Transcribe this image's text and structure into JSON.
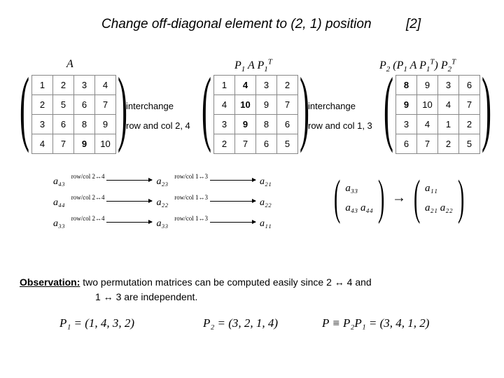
{
  "title": "Change off-diagonal element to (2, 1) position",
  "title_ref": "[2]",
  "labels": {
    "lambda": "A",
    "p1ap1": "P₁ A P₁ᵀ",
    "p2": "P₂ ( P₁ A P₁ᵀ ) P₂ᵀ"
  },
  "matrices": {
    "A": {
      "rows": [
        [
          "1",
          "2",
          "3",
          "4"
        ],
        [
          "2",
          "5",
          "6",
          "7"
        ],
        [
          "3",
          "6",
          "8",
          "9"
        ],
        [
          "4",
          "7",
          "9",
          "10"
        ]
      ],
      "bold_cells": [
        [
          3,
          2
        ]
      ]
    },
    "B": {
      "rows": [
        [
          "1",
          "4",
          "3",
          "2"
        ],
        [
          "4",
          "10",
          "9",
          "7"
        ],
        [
          "3",
          "9",
          "8",
          "6"
        ],
        [
          "2",
          "7",
          "6",
          "5"
        ]
      ],
      "bold_cells": [
        [
          0,
          1
        ],
        [
          1,
          1
        ],
        [
          2,
          1
        ]
      ]
    },
    "C": {
      "rows": [
        [
          "8",
          "9",
          "3",
          "6"
        ],
        [
          "9",
          "10",
          "4",
          "7"
        ],
        [
          "3",
          "4",
          "1",
          "2"
        ],
        [
          "6",
          "7",
          "2",
          "5"
        ]
      ],
      "bold_cells": [
        [
          0,
          0
        ],
        [
          1,
          0
        ]
      ]
    }
  },
  "annotations": {
    "int1_a": "interchange",
    "int1_b": "row and col 2, 4",
    "int2_a": "interchange",
    "int2_b": "row and col 1, 3"
  },
  "mapping": {
    "rows": [
      {
        "from": "a₄₃",
        "lbl1": "row/col 2↔4",
        "mid": "a₂₃",
        "lbl2": "row/col 1↔3",
        "to": "a₂₁"
      },
      {
        "from": "a₄₄",
        "lbl1": "row/col 2↔4",
        "mid": "a₂₂",
        "lbl2": "row/col 1↔3",
        "to": "a₂₂"
      },
      {
        "from": "a₃₃",
        "lbl1": "row/col 2↔4",
        "mid": "a₃₃",
        "lbl2": "row/col 1↔3",
        "to": "a₁₁"
      }
    ]
  },
  "map_right": {
    "left_top": "a₃₃",
    "left_bot": "a₄₃   a₄₄",
    "right_top": "a₁₁",
    "right_bot": "a₂₁   a₂₂"
  },
  "observation": {
    "label": "Observation:",
    "line1": " two permutation matrices can be computed easily since 2 ↔ 4  and",
    "line2": "1 ↔ 3 are independent."
  },
  "perm": {
    "p1": "P₁ = (1, 4, 3, 2)",
    "p2": "P₂ = (3, 2, 1, 4)",
    "p3": "P ≡ P₂P₁ = (3, 4, 1, 2)"
  },
  "colors": {
    "background": "#ffffff",
    "text": "#000000",
    "grid": "#888888"
  },
  "fonts": {
    "title_size": 19,
    "body_size": 13,
    "math_family": "Times New Roman"
  }
}
